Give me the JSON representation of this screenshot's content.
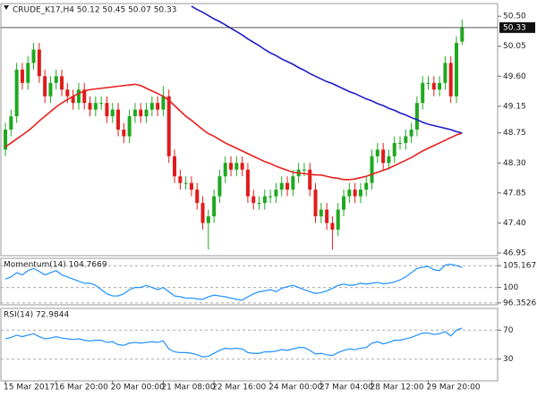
{
  "chart_data": [
    {
      "type": "candlestick",
      "title": "CRUDE_K17,H4  50.12 50.45 50.07 50.33",
      "xlim": [
        -0.8,
        87.3
      ],
      "ylim": [
        46.91,
        50.69
      ],
      "yticks": [
        46.95,
        {
          "value": 47.4,
          "label": "47.40"
        },
        47.85,
        {
          "value": 48.3,
          "label": "48.30"
        },
        48.75,
        49.15,
        {
          "value": 49.6,
          "label": "49.60"
        },
        50.05,
        {
          "value": 50.5,
          "label": "50.50"
        }
      ],
      "up_color": "#1fa81f",
      "down_color": "#e01b1b",
      "open": [
        48.5,
        48.8,
        49.0,
        49.7,
        49.5,
        49.8,
        50.0,
        49.6,
        49.3,
        49.5,
        49.6,
        49.4,
        49.3,
        49.2,
        49.4,
        49.2,
        49.1,
        49.2,
        49.2,
        49.0,
        49.1,
        48.8,
        48.7,
        49.0,
        49.1,
        49.0,
        49.1,
        49.2,
        49.1,
        49.3,
        48.4,
        48.1,
        48.0,
        48.0,
        47.9,
        47.7,
        47.4,
        47.5,
        47.8,
        48.1,
        48.3,
        48.2,
        48.3,
        48.2,
        47.8,
        47.7,
        47.7,
        47.8,
        47.8,
        47.9,
        48.0,
        47.9,
        48.1,
        48.2,
        48.2,
        47.9,
        47.5,
        47.6,
        47.4,
        47.3,
        47.6,
        47.8,
        47.9,
        47.8,
        47.9,
        48.0,
        48.4,
        48.5,
        48.3,
        48.4,
        48.6,
        48.6,
        48.7,
        48.8,
        49.2,
        49.5,
        49.5,
        49.4,
        49.5,
        49.8,
        49.3,
        50.12
      ],
      "high": [
        48.9,
        49.1,
        49.8,
        49.8,
        49.9,
        50.1,
        50.1,
        49.7,
        49.6,
        49.7,
        49.7,
        49.5,
        49.4,
        49.5,
        49.5,
        49.3,
        49.3,
        49.3,
        49.3,
        49.2,
        49.2,
        48.9,
        49.1,
        49.2,
        49.2,
        49.2,
        49.3,
        49.3,
        49.45,
        49.4,
        48.5,
        48.2,
        48.1,
        48.1,
        48.0,
        47.8,
        47.6,
        47.9,
        48.2,
        48.4,
        48.4,
        48.4,
        48.4,
        48.3,
        47.9,
        47.8,
        47.9,
        47.9,
        48.0,
        48.1,
        48.1,
        48.2,
        48.3,
        48.3,
        48.3,
        48.0,
        47.7,
        47.7,
        47.5,
        47.7,
        47.9,
        48.0,
        48.0,
        48.0,
        48.1,
        48.5,
        48.6,
        48.6,
        48.5,
        48.7,
        48.7,
        48.8,
        48.9,
        49.3,
        49.6,
        49.6,
        49.6,
        49.6,
        49.9,
        49.9,
        50.2,
        50.45
      ],
      "low": [
        48.4,
        48.7,
        48.9,
        49.4,
        49.4,
        49.7,
        49.5,
        49.2,
        49.2,
        49.4,
        49.3,
        49.2,
        49.1,
        49.1,
        49.1,
        49.0,
        49.0,
        49.1,
        48.9,
        48.9,
        48.7,
        48.6,
        48.6,
        48.9,
        48.9,
        48.9,
        49.0,
        49.0,
        49.0,
        48.3,
        48.0,
        47.9,
        47.9,
        47.8,
        47.6,
        47.3,
        47.0,
        47.4,
        47.7,
        48.0,
        48.1,
        48.1,
        48.1,
        47.7,
        47.6,
        47.6,
        47.6,
        47.7,
        47.7,
        47.8,
        47.8,
        47.8,
        48.0,
        48.1,
        47.8,
        47.4,
        47.4,
        47.3,
        47.0,
        47.2,
        47.5,
        47.7,
        47.7,
        47.7,
        47.8,
        47.9,
        48.3,
        48.2,
        48.2,
        48.3,
        48.5,
        48.5,
        48.6,
        48.7,
        49.1,
        49.4,
        49.3,
        49.3,
        49.4,
        49.2,
        49.2,
        50.07
      ],
      "close": [
        48.8,
        49.0,
        49.7,
        49.5,
        49.8,
        50.0,
        49.6,
        49.3,
        49.5,
        49.6,
        49.4,
        49.3,
        49.2,
        49.4,
        49.2,
        49.1,
        49.2,
        49.2,
        49.0,
        49.1,
        48.8,
        48.7,
        49.0,
        49.1,
        49.0,
        49.1,
        49.2,
        49.1,
        49.3,
        48.4,
        48.1,
        48.0,
        48.0,
        47.9,
        47.7,
        47.4,
        47.5,
        47.8,
        48.1,
        48.3,
        48.2,
        48.3,
        48.2,
        47.8,
        47.7,
        47.7,
        47.8,
        47.8,
        47.9,
        48.0,
        47.9,
        48.1,
        48.2,
        48.2,
        47.9,
        47.5,
        47.6,
        47.4,
        47.3,
        47.6,
        47.8,
        47.9,
        47.8,
        47.9,
        48.0,
        48.4,
        48.5,
        48.3,
        48.4,
        48.6,
        48.6,
        48.7,
        48.8,
        49.2,
        49.5,
        49.5,
        49.4,
        49.5,
        49.8,
        49.3,
        50.1,
        50.33
      ],
      "series": [
        {
          "color": "#e8201c",
          "values": [
            48.54,
            48.6,
            48.66,
            48.72,
            48.78,
            48.85,
            48.93,
            49.0,
            49.07,
            49.14,
            49.2,
            49.25,
            49.3,
            49.34,
            49.38,
            49.4,
            49.41,
            49.42,
            49.43,
            49.44,
            49.45,
            49.46,
            49.47,
            49.48,
            49.46,
            49.42,
            49.38,
            49.34,
            49.3,
            49.24,
            49.16,
            49.08,
            49.0,
            48.94,
            48.87,
            48.8,
            48.74,
            48.7,
            48.65,
            48.6,
            48.56,
            48.52,
            48.48,
            48.44,
            48.4,
            48.36,
            48.32,
            48.29,
            48.25,
            48.22,
            48.19,
            48.16,
            48.15,
            48.14,
            48.13,
            48.12,
            48.12,
            48.1,
            48.08,
            48.07,
            48.05,
            48.05,
            48.06,
            48.08,
            48.1,
            48.13,
            48.16,
            48.19,
            48.22,
            48.26,
            48.3,
            48.34,
            48.38,
            48.43,
            48.48,
            48.52,
            48.56,
            48.6,
            48.64,
            48.68,
            48.72,
            48.75
          ]
        },
        {
          "color": "#1c1cc8",
          "values": [
            null,
            null,
            null,
            null,
            null,
            null,
            null,
            null,
            null,
            null,
            null,
            null,
            null,
            null,
            null,
            null,
            null,
            null,
            null,
            null,
            null,
            null,
            null,
            null,
            null,
            null,
            null,
            null,
            null,
            null,
            null,
            null,
            null,
            50.65,
            50.6,
            50.56,
            50.51,
            50.46,
            50.42,
            50.37,
            50.32,
            50.27,
            50.22,
            50.16,
            50.11,
            50.06,
            50.0,
            49.95,
            49.91,
            49.86,
            49.82,
            49.78,
            49.73,
            49.69,
            49.64,
            49.6,
            49.56,
            49.52,
            49.49,
            49.45,
            49.41,
            49.37,
            49.34,
            49.3,
            49.26,
            49.23,
            49.19,
            49.16,
            49.12,
            49.09,
            49.05,
            49.02,
            48.98,
            48.95,
            48.91,
            48.88,
            48.86,
            48.84,
            48.82,
            48.8,
            48.77,
            48.75
          ]
        }
      ],
      "last_price": 50.33
    },
    {
      "type": "line",
      "title": "Momentum(14) 104.7669",
      "xlim": [
        -0.8,
        87.3
      ],
      "ylim": [
        95.9,
        106.9
      ],
      "yticks": [
        96.3526,
        100,
        105.1675
      ],
      "series": [
        {
          "color": "#1e90ff",
          "values": [
            102,
            102.5,
            103.5,
            103,
            104,
            104.5,
            103.8,
            103,
            103.5,
            104,
            103,
            102.5,
            102,
            101.5,
            101,
            101,
            100.5,
            99.5,
            98.5,
            98,
            98,
            98.5,
            99.5,
            100,
            100,
            100.5,
            100,
            99.5,
            100,
            99,
            98,
            97.8,
            97.5,
            97.5,
            97.3,
            97.2,
            97.8,
            98.2,
            98,
            97.8,
            97.5,
            97.2,
            97,
            97.8,
            98.5,
            99,
            99.2,
            99.5,
            99,
            99.8,
            100.2,
            100.5,
            100,
            99.5,
            99,
            98.6,
            98.8,
            99.2,
            99.8,
            100.5,
            100.8,
            100.5,
            100.6,
            101,
            100.8,
            101,
            101.2,
            100.9,
            101,
            101.3,
            101.8,
            102.5,
            103.5,
            104.5,
            104.8,
            105,
            104.2,
            104,
            105.3,
            105.5,
            105.2,
            104.7669
          ]
        }
      ]
    },
    {
      "type": "line",
      "title": "RSI(14) 72.9844",
      "xlim": [
        -0.8,
        87.3
      ],
      "ylim": [
        0,
        100
      ],
      "yticks": [
        30,
        70
      ],
      "xticks": [
        {
          "value": 0,
          "label": "15 Mar 2017"
        },
        {
          "value": 9,
          "label": "16 Mar 20:00"
        },
        {
          "value": 19,
          "label": "20 Mar 00:00"
        },
        {
          "value": 28,
          "label": "21 Mar 08:00"
        },
        {
          "value": 37,
          "label": "22 Mar 16:00"
        },
        {
          "value": 47,
          "label": "24 Mar 00:00"
        },
        {
          "value": 56,
          "label": "27 Mar 04:00"
        },
        {
          "value": 65,
          "label": "28 Mar 12:00"
        },
        {
          "value": 75,
          "label": "29 Mar 20:00"
        }
      ],
      "series": [
        {
          "color": "#1e90ff",
          "values": [
            58,
            60,
            63,
            61,
            63,
            65,
            61,
            58,
            59,
            61,
            59,
            58,
            57,
            58,
            56,
            55,
            56,
            56,
            53,
            54,
            50,
            49,
            52,
            53,
            52,
            53,
            54,
            53,
            55,
            44,
            40,
            39,
            39,
            38,
            36,
            33,
            34,
            38,
            42,
            45,
            44,
            45,
            44,
            39,
            38,
            38,
            40,
            40,
            41,
            43,
            42,
            44,
            46,
            46,
            42,
            37,
            38,
            36,
            35,
            39,
            42,
            44,
            43,
            45,
            46,
            52,
            54,
            51,
            53,
            56,
            56,
            58,
            60,
            63,
            66,
            66,
            64,
            65,
            68,
            62,
            70,
            72.9844
          ]
        }
      ]
    }
  ]
}
